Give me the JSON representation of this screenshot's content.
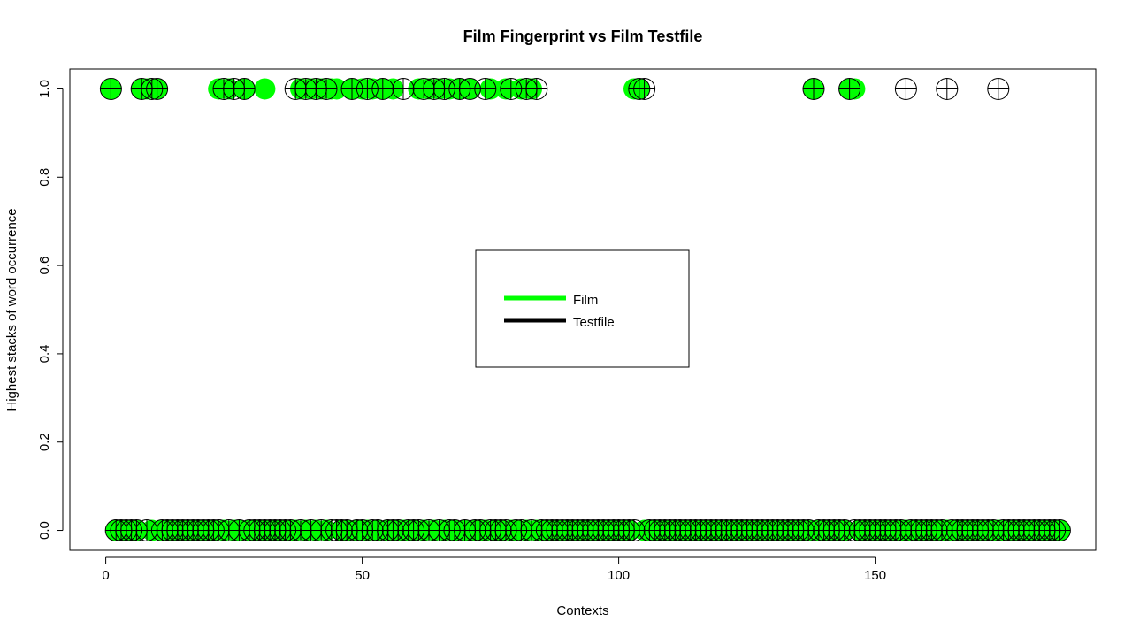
{
  "chart_data": {
    "type": "scatter",
    "title": "Film Fingerprint vs Film Testfile",
    "xlabel": "Contexts",
    "ylabel": "Highest stacks of word occurrence",
    "xlim": [
      -7,
      193
    ],
    "ylim": [
      -0.045,
      1.045
    ],
    "x_ticks": [
      "0",
      "50",
      "100",
      "150"
    ],
    "y_ticks": [
      "0.0",
      "0.2",
      "0.4",
      "0.6",
      "0.8",
      "1.0"
    ],
    "grid": false,
    "legend_position": "center",
    "series": [
      {
        "name": "Film",
        "color": "#00ff00",
        "marker": "filled-circle",
        "ones": [
          1,
          7,
          8,
          10,
          22,
          24,
          27,
          31,
          38,
          40,
          42,
          44,
          45,
          48,
          50,
          52,
          54,
          56,
          61,
          63,
          65,
          67,
          69,
          71,
          75,
          78,
          81,
          83,
          103,
          104,
          138,
          145,
          146
        ]
      },
      {
        "name": "Testfile",
        "color": "#000000",
        "marker": "crossed-circle",
        "ones": [
          1,
          7,
          9,
          10,
          23,
          25,
          27,
          37,
          39,
          41,
          43,
          48,
          51,
          54,
          58,
          62,
          64,
          66,
          69,
          71,
          74,
          79,
          82,
          84,
          104,
          105,
          138,
          145,
          156,
          164,
          174
        ]
      }
    ],
    "n_points": 186
  }
}
